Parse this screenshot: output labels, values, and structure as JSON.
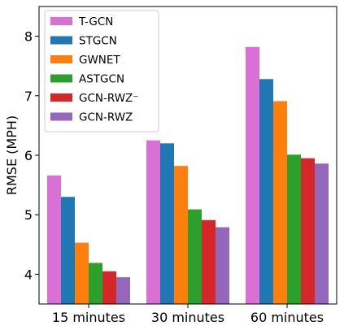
{
  "chart_data": {
    "type": "bar",
    "title": "",
    "xlabel": "",
    "ylabel": "RMSE (MPH)",
    "categories": [
      "15 minutes",
      "30 minutes",
      "60 minutes"
    ],
    "ylim": [
      3.5,
      8.5
    ],
    "yticks": [
      "4",
      "5",
      "6",
      "7",
      "8"
    ],
    "grid": false,
    "legend_position": "top-left",
    "series": [
      {
        "name": "T-GCN",
        "color": "#DA70D6",
        "values": [
          5.66,
          6.25,
          7.82
        ]
      },
      {
        "name": "STGCN",
        "color": "#1F77B4",
        "values": [
          5.3,
          6.2,
          7.28
        ]
      },
      {
        "name": "GWNET",
        "color": "#FF7F0E",
        "values": [
          4.53,
          5.82,
          6.91
        ]
      },
      {
        "name": "ASTGCN",
        "color": "#2CA02C",
        "values": [
          4.19,
          5.09,
          6.01
        ]
      },
      {
        "name": "GCN-RWZ⁻",
        "color": "#D62728",
        "values": [
          4.05,
          4.91,
          5.95
        ]
      },
      {
        "name": "GCN-RWZ",
        "color": "#9467BD",
        "values": [
          3.95,
          4.79,
          5.86
        ]
      }
    ]
  }
}
